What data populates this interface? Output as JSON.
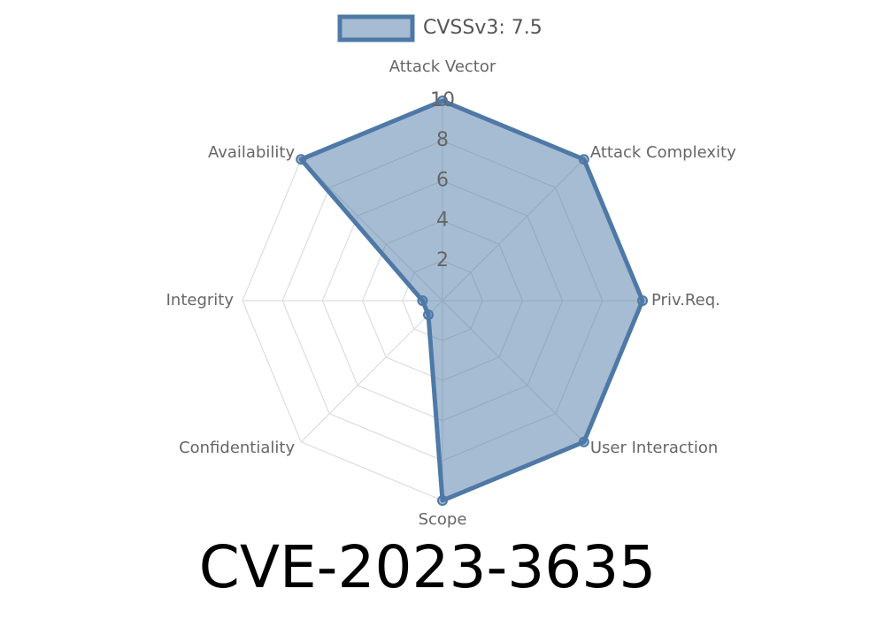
{
  "chart_data": {
    "type": "radar",
    "title": "CVE-2023-3635",
    "categories": [
      "Attack Vector",
      "Attack Complexity",
      "Priv.Req.",
      "User Interaction",
      "Scope",
      "Confidentiality",
      "Integrity",
      "Availability"
    ],
    "series": [
      {
        "name": "CVSSv3: 7.5",
        "color": "#4e79a7",
        "values": [
          10,
          10,
          10,
          10,
          10,
          1,
          1,
          10
        ]
      }
    ],
    "rlim": [
      0,
      10
    ],
    "rticks": [
      2,
      4,
      6,
      8,
      10
    ],
    "grid": true,
    "legend": "top"
  }
}
